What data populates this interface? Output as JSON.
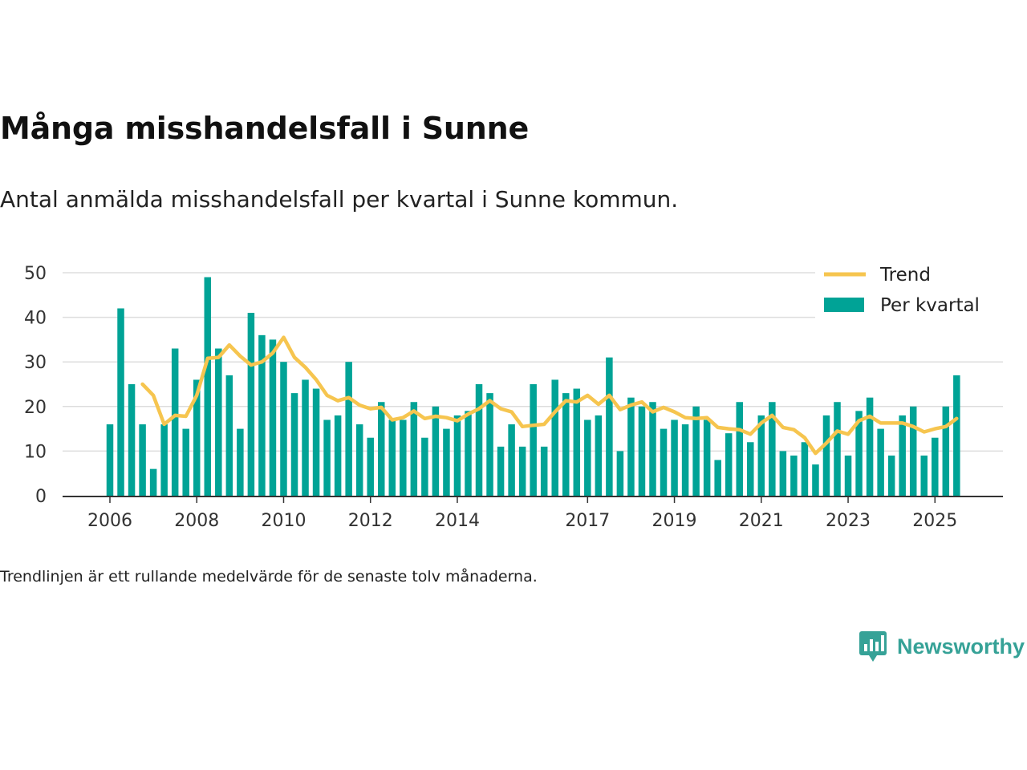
{
  "header": {
    "title": "Många misshandelsfall i Sunne",
    "subtitle": "Antal anmälda misshandelsfall per kvartal i Sunne kommun."
  },
  "footer": {
    "caption": "Trendlinjen är ett rullande medelvärde för de senaste tolv månaderna.",
    "brand": "Newsworthy"
  },
  "colors": {
    "bar": "#00a396",
    "trend": "#f6c54f",
    "grid": "#dddddd",
    "axis": "#333333"
  },
  "chart_data": {
    "type": "bar",
    "title": "Många misshandelsfall i Sunne",
    "xlabel": "",
    "ylabel": "",
    "ylim": [
      0,
      50
    ],
    "yticks": [
      0,
      10,
      20,
      30,
      40,
      50
    ],
    "xtick_labels": [
      {
        "label": "2006",
        "index": 0
      },
      {
        "label": "2008",
        "index": 8
      },
      {
        "label": "2010",
        "index": 16
      },
      {
        "label": "2012",
        "index": 24
      },
      {
        "label": "2014",
        "index": 32
      },
      {
        "label": "2017",
        "index": 44
      },
      {
        "label": "2019",
        "index": 52
      },
      {
        "label": "2021",
        "index": 60
      },
      {
        "label": "2023",
        "index": 68
      },
      {
        "label": "2025",
        "index": 76
      }
    ],
    "legend": {
      "position": "top-right",
      "trend_label": "Trend",
      "bar_label": "Per kvartal"
    },
    "series": [
      {
        "name": "Per kvartal",
        "type": "bar",
        "values": [
          16,
          42,
          25,
          16,
          6,
          16,
          33,
          15,
          26,
          49,
          33,
          27,
          15,
          41,
          36,
          35,
          30,
          23,
          26,
          24,
          17,
          18,
          30,
          16,
          13,
          21,
          17,
          17,
          21,
          13,
          20,
          15,
          18,
          19,
          25,
          23,
          11,
          16,
          11,
          25,
          11,
          26,
          23,
          24,
          17,
          18,
          31,
          10,
          22,
          20,
          21,
          15,
          17,
          16,
          20,
          17,
          8,
          14,
          21,
          12,
          18,
          21,
          10,
          9,
          12,
          7,
          18,
          21,
          9,
          19,
          22,
          15,
          9,
          18,
          20,
          9,
          13,
          20,
          27
        ]
      },
      {
        "name": "Trend",
        "type": "line",
        "start_index": 3,
        "values": [
          25,
          22.5,
          16,
          18,
          17.8,
          22.5,
          30.8,
          31,
          33.8,
          31.3,
          29.3,
          30,
          32,
          35.5,
          31,
          28.8,
          26,
          22.5,
          21.3,
          22,
          20.3,
          19.5,
          19.8,
          17,
          17.5,
          19,
          17.3,
          17.8,
          17.5,
          16.8,
          18.3,
          19.5,
          21.3,
          19.5,
          18.8,
          15.5,
          15.8,
          16,
          18.8,
          21.3,
          21,
          22.5,
          20.5,
          22.5,
          19.3,
          20.3,
          21,
          18.8,
          19.8,
          18.8,
          17.5,
          17.3,
          17.5,
          15.3,
          15,
          14.8,
          13.8,
          16.3,
          18,
          15.3,
          14.8,
          13,
          9.5,
          11.8,
          14.5,
          13.8,
          16.8,
          17.8,
          16.3,
          16.3,
          16.3,
          15.5,
          14.3,
          15,
          15.5,
          17.3
        ]
      }
    ]
  }
}
